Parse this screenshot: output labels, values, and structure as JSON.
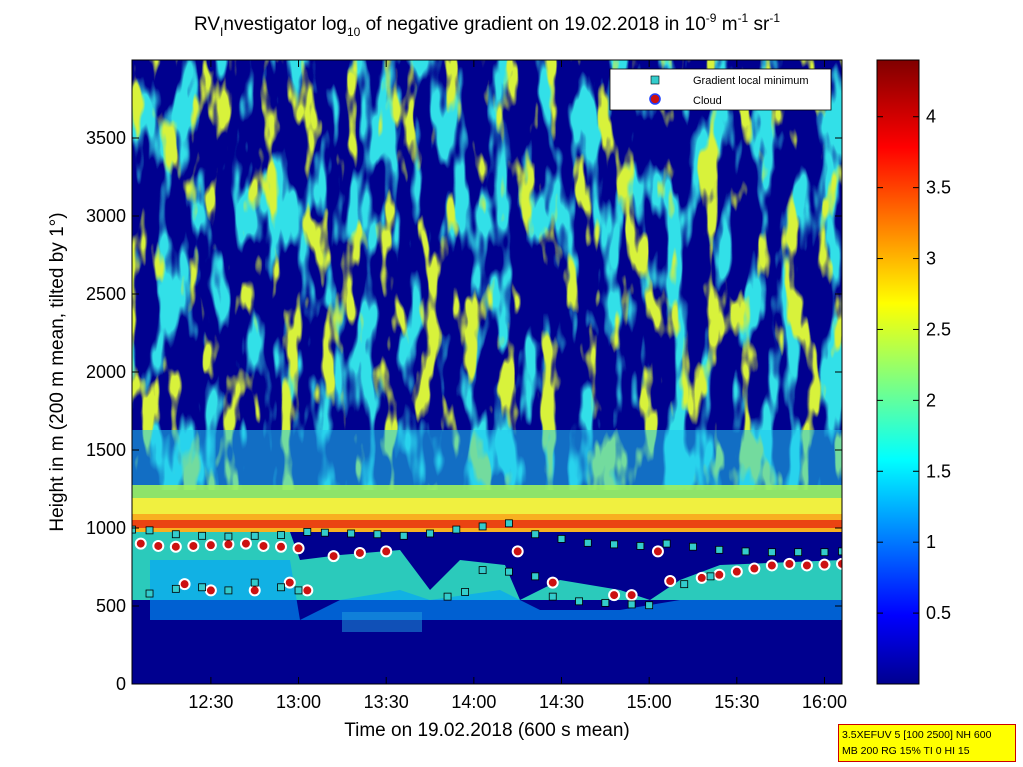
{
  "chart_data": {
    "type": "heatmap",
    "title_parts": [
      "RV",
      "I",
      "nvestigator log",
      "10",
      " of negative gradient on 19.02.2018 in 10",
      "-9",
      " m",
      "-1",
      " sr",
      "-1"
    ],
    "xlabel": "Time on 19.02.2018 (600 s mean)",
    "ylabel": "Height in m (200 m mean, tilted by 1°)",
    "x_ticks": [
      "12:30",
      "13:00",
      "13:30",
      "14:00",
      "14:30",
      "15:00",
      "15:30",
      "16:00"
    ],
    "x_tick_hours": [
      12.5,
      13.0,
      13.5,
      14.0,
      14.5,
      15.0,
      15.5,
      16.0
    ],
    "xlim_hours": [
      12.05,
      16.1
    ],
    "y_ticks": [
      "0",
      "500",
      "1000",
      "1500",
      "2000",
      "2500",
      "3000",
      "3500"
    ],
    "y_tick_values": [
      0,
      500,
      1000,
      1500,
      2000,
      2500,
      3000,
      3500
    ],
    "ylim": [
      0,
      4000
    ],
    "colorbar": {
      "ticks": [
        "0.5",
        "1",
        "1.5",
        "2",
        "2.5",
        "3",
        "3.5",
        "4"
      ],
      "tick_values": [
        0.5,
        1.0,
        1.5,
        2.0,
        2.5,
        3.0,
        3.5,
        4.0
      ],
      "range": [
        0.0,
        4.4
      ],
      "colormap": "jet"
    },
    "legend": {
      "placement": "top-right",
      "entries": [
        {
          "label": "Gradient local minimum",
          "marker": "square",
          "color": "#33cccc"
        },
        {
          "label": "Cloud",
          "marker": "circle",
          "color": "#cc1111"
        }
      ]
    },
    "series": [
      {
        "name": "Gradient local minimum",
        "points": [
          [
            12.05,
            990
          ],
          [
            12.15,
            985
          ],
          [
            12.3,
            960
          ],
          [
            12.45,
            950
          ],
          [
            12.6,
            945
          ],
          [
            12.75,
            950
          ],
          [
            12.9,
            955
          ],
          [
            13.05,
            975
          ],
          [
            13.15,
            970
          ],
          [
            13.3,
            965
          ],
          [
            13.45,
            960
          ],
          [
            13.6,
            950
          ],
          [
            13.75,
            965
          ],
          [
            13.9,
            990
          ],
          [
            14.05,
            1010
          ],
          [
            14.2,
            1030
          ],
          [
            14.35,
            960
          ],
          [
            14.5,
            930
          ],
          [
            14.65,
            905
          ],
          [
            14.8,
            895
          ],
          [
            14.95,
            885
          ],
          [
            15.1,
            900
          ],
          [
            15.25,
            880
          ],
          [
            15.4,
            860
          ],
          [
            15.55,
            850
          ],
          [
            15.7,
            845
          ],
          [
            15.85,
            845
          ],
          [
            16.0,
            845
          ],
          [
            16.1,
            850
          ],
          [
            12.15,
            580
          ],
          [
            12.3,
            610
          ],
          [
            12.45,
            620
          ],
          [
            12.6,
            600
          ],
          [
            12.75,
            650
          ],
          [
            12.9,
            620
          ],
          [
            13.0,
            600
          ],
          [
            13.85,
            560
          ],
          [
            13.95,
            590
          ],
          [
            14.05,
            730
          ],
          [
            14.2,
            720
          ],
          [
            14.35,
            690
          ],
          [
            14.45,
            560
          ],
          [
            14.6,
            530
          ],
          [
            14.75,
            520
          ],
          [
            14.9,
            510
          ],
          [
            15.0,
            505
          ],
          [
            15.2,
            640
          ],
          [
            15.35,
            690
          ]
        ]
      },
      {
        "name": "Cloud",
        "points": [
          [
            12.1,
            900
          ],
          [
            12.2,
            885
          ],
          [
            12.3,
            880
          ],
          [
            12.4,
            885
          ],
          [
            12.5,
            890
          ],
          [
            12.6,
            895
          ],
          [
            12.7,
            900
          ],
          [
            12.8,
            885
          ],
          [
            12.9,
            880
          ],
          [
            13.0,
            870
          ],
          [
            12.35,
            640
          ],
          [
            12.5,
            600
          ],
          [
            12.75,
            600
          ],
          [
            12.95,
            650
          ],
          [
            13.05,
            600
          ],
          [
            13.2,
            820
          ],
          [
            13.35,
            840
          ],
          [
            13.5,
            850
          ],
          [
            14.25,
            850
          ],
          [
            14.45,
            650
          ],
          [
            14.8,
            570
          ],
          [
            14.9,
            570
          ],
          [
            15.05,
            850
          ],
          [
            15.12,
            660
          ],
          [
            15.3,
            680
          ],
          [
            15.4,
            700
          ],
          [
            15.5,
            720
          ],
          [
            15.6,
            740
          ],
          [
            15.7,
            760
          ],
          [
            15.8,
            770
          ],
          [
            15.9,
            760
          ],
          [
            16.0,
            765
          ],
          [
            16.1,
            770
          ]
        ]
      }
    ]
  },
  "info_box": {
    "line1": "3.5XEFUV 5 [100 2500] NH 600",
    "line2": "MB 200 RG 15% TI 0 HI 15"
  }
}
